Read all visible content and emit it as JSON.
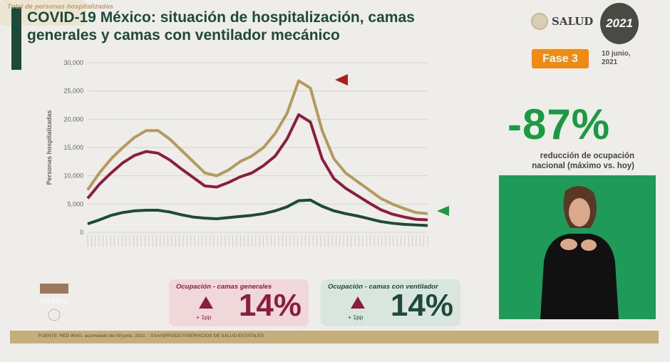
{
  "title": "COVID-19 México: situación de hospitalización, camas generales y camas con ventilador mecánico",
  "header": {
    "brand": "SALUD",
    "event_logo": "2021",
    "phase": "Fase 3",
    "date": "10 junio, 2021"
  },
  "headline": {
    "value": "-87%",
    "description": "reducción de ocupación nacional (máximo vs. hoy)"
  },
  "legend": {
    "total": "Total de personas hospitalizadas"
  },
  "kpis": [
    {
      "label": "Ocupación - camas generales",
      "change": "+ 1pp",
      "value": "14%",
      "trend": "up"
    },
    {
      "label": "Ocupación - camas con ventilador",
      "change": "+ 1pp",
      "value": "14%",
      "trend": "up"
    }
  ],
  "footer": "FUENTE: RED IRAG, acumulado del 09 junio, 2021. - SSA/SPPS/DGTI/SERVICIOS DE SALUD ESTATALES",
  "colors": {
    "total": "#b39a5e",
    "general": "#8b1e3f",
    "ventilator": "#1d4a3a",
    "headline": "#1a9a42",
    "phase": "#ef8a12"
  },
  "chart_data": {
    "type": "line",
    "ylabel": "Personas hospitalizadas",
    "ylim": [
      0,
      30000
    ],
    "yticks": [
      "0",
      "5,000",
      "10,000",
      "15,000",
      "20,000",
      "25,000",
      "30,000"
    ],
    "grid": true,
    "series": [
      {
        "key": "total",
        "values": [
          7500,
          10500,
          13000,
          15000,
          16800,
          18000,
          18000,
          16500,
          14500,
          12500,
          10500,
          10000,
          11000,
          12500,
          13500,
          15000,
          17500,
          21000,
          26800,
          25500,
          18000,
          13000,
          10500,
          9000,
          7500,
          6000,
          5000,
          4200,
          3500,
          3300
        ]
      },
      {
        "key": "general",
        "values": [
          6000,
          8500,
          10500,
          12300,
          13600,
          14300,
          14000,
          12800,
          11200,
          9700,
          8200,
          8000,
          8800,
          9800,
          10500,
          11800,
          13500,
          16500,
          20800,
          19500,
          13000,
          9500,
          7800,
          6500,
          5200,
          4000,
          3200,
          2700,
          2300,
          2200
        ]
      },
      {
        "key": "ventilator",
        "values": [
          1500,
          2200,
          3000,
          3500,
          3800,
          3900,
          3900,
          3600,
          3100,
          2700,
          2500,
          2400,
          2600,
          2800,
          3000,
          3300,
          3800,
          4500,
          5600,
          5700,
          4600,
          3800,
          3300,
          2900,
          2400,
          1900,
          1600,
          1400,
          1300,
          1200
        ]
      }
    ]
  }
}
